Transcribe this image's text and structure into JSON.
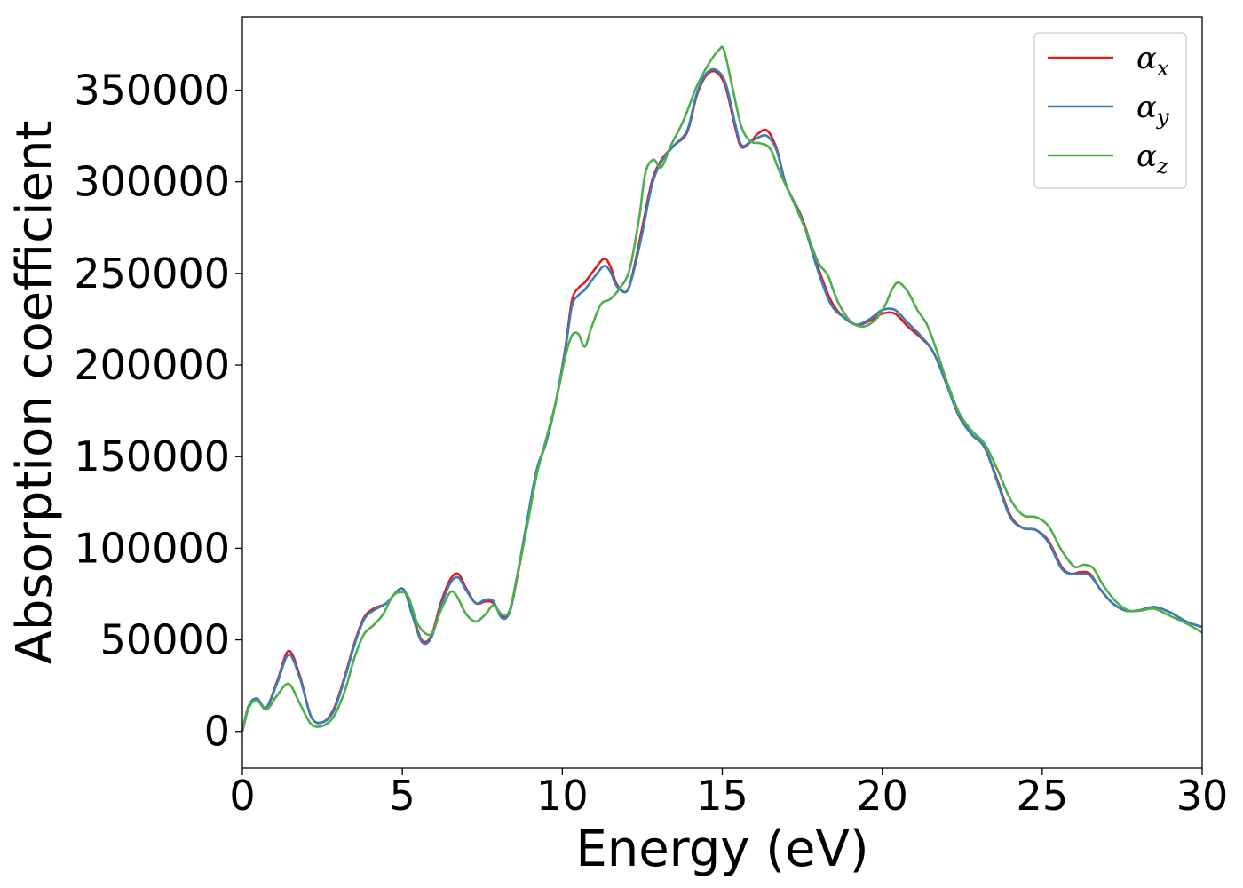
{
  "chart_data": {
    "type": "line",
    "xlabel": "Energy (eV)",
    "ylabel": "Absorption coefficient",
    "xlim": [
      0,
      30
    ],
    "ylim": [
      -20000,
      390000
    ],
    "x_ticks": [
      0,
      5,
      10,
      15,
      20,
      25,
      30
    ],
    "y_ticks": [
      0,
      50000,
      100000,
      150000,
      200000,
      250000,
      300000,
      350000
    ],
    "grid": false,
    "legend_position": "top-right",
    "series": [
      {
        "name": "α",
        "subscript": "x",
        "color": "#e41a1c",
        "x": [
          0,
          0.2,
          0.45,
          0.75,
          1.1,
          1.45,
          1.8,
          2.15,
          2.5,
          2.85,
          3.2,
          3.5,
          3.8,
          4.1,
          4.5,
          5.0,
          5.3,
          5.6,
          5.9,
          6.2,
          6.5,
          6.75,
          7.0,
          7.3,
          7.6,
          7.85,
          8.1,
          8.35,
          8.6,
          8.9,
          9.2,
          9.5,
          9.8,
          10.1,
          10.3,
          10.5,
          10.7,
          11.0,
          11.3,
          11.5,
          11.7,
          12.0,
          12.2,
          12.5,
          12.8,
          13.1,
          13.5,
          13.9,
          14.2,
          14.5,
          14.8,
          15.1,
          15.4,
          15.6,
          15.9,
          16.1,
          16.4,
          16.7,
          17.0,
          17.5,
          18.0,
          18.4,
          18.8,
          19.2,
          19.6,
          20.0,
          20.4,
          20.8,
          21.2,
          21.6,
          22.0,
          22.4,
          22.8,
          23.2,
          23.6,
          24.0,
          24.4,
          24.8,
          25.2,
          25.6,
          25.9,
          26.2,
          26.5,
          26.8,
          27.2,
          27.6,
          28.0,
          28.5,
          29.0,
          29.5,
          30.0
        ],
        "y": [
          0,
          14000,
          18000,
          13000,
          28000,
          44000,
          30000,
          8000,
          5000,
          12000,
          30000,
          48000,
          62000,
          67000,
          70000,
          78000,
          65000,
          50000,
          52000,
          70000,
          83000,
          86000,
          78000,
          70000,
          71000,
          70000,
          63000,
          65000,
          85000,
          113000,
          142000,
          158000,
          180000,
          210000,
          235000,
          242000,
          245000,
          252000,
          258000,
          254000,
          244000,
          240000,
          250000,
          275000,
          300000,
          312000,
          320000,
          327000,
          347000,
          358000,
          360000,
          352000,
          330000,
          319000,
          322000,
          326000,
          328000,
          318000,
          298000,
          280000,
          253000,
          235000,
          226000,
          222000,
          224000,
          228000,
          228000,
          221000,
          215000,
          207000,
          190000,
          172000,
          162000,
          155000,
          137000,
          118000,
          111000,
          110000,
          104000,
          90000,
          86000,
          87000,
          86000,
          78000,
          70000,
          66000,
          66000,
          68000,
          65000,
          60000,
          57000
        ]
      },
      {
        "name": "α",
        "subscript": "y",
        "color": "#377eb8",
        "x": [
          0,
          0.2,
          0.45,
          0.75,
          1.1,
          1.45,
          1.8,
          2.15,
          2.5,
          2.85,
          3.2,
          3.5,
          3.8,
          4.1,
          4.5,
          5.0,
          5.3,
          5.6,
          5.9,
          6.2,
          6.5,
          6.75,
          7.0,
          7.3,
          7.6,
          7.85,
          8.1,
          8.35,
          8.6,
          8.9,
          9.2,
          9.5,
          9.8,
          10.1,
          10.3,
          10.5,
          10.7,
          11.0,
          11.3,
          11.5,
          11.7,
          12.0,
          12.2,
          12.5,
          12.8,
          13.1,
          13.5,
          13.9,
          14.2,
          14.5,
          14.8,
          15.1,
          15.4,
          15.6,
          15.9,
          16.1,
          16.4,
          16.7,
          17.0,
          17.5,
          18.0,
          18.4,
          18.8,
          19.2,
          19.6,
          20.0,
          20.4,
          20.8,
          21.2,
          21.6,
          22.0,
          22.4,
          22.8,
          23.2,
          23.6,
          24.0,
          24.4,
          24.8,
          25.2,
          25.6,
          25.9,
          26.2,
          26.5,
          26.8,
          27.2,
          27.6,
          28.0,
          28.5,
          29.0,
          29.5,
          30.0
        ],
        "y": [
          0,
          14000,
          18000,
          13000,
          27000,
          42000,
          29000,
          8000,
          5000,
          11000,
          29000,
          47000,
          61000,
          66000,
          70000,
          78000,
          64000,
          49000,
          51000,
          68000,
          81000,
          84000,
          77000,
          70000,
          72000,
          71000,
          62000,
          65000,
          86000,
          115000,
          143000,
          158000,
          180000,
          209000,
          232000,
          238000,
          241000,
          248000,
          254000,
          251000,
          243000,
          240000,
          249000,
          272000,
          298000,
          311000,
          320000,
          328000,
          348000,
          359000,
          361000,
          354000,
          332000,
          320000,
          322000,
          324000,
          325000,
          317000,
          298000,
          279000,
          251000,
          233000,
          226000,
          222000,
          225000,
          230000,
          230000,
          223000,
          216000,
          207000,
          190000,
          172000,
          162000,
          155000,
          136000,
          117000,
          111000,
          110000,
          103000,
          89000,
          86000,
          86000,
          85000,
          78000,
          70000,
          66000,
          66000,
          68000,
          65000,
          60000,
          57000
        ]
      },
      {
        "name": "α",
        "subscript": "z",
        "color": "#4daf4a",
        "x": [
          0,
          0.2,
          0.45,
          0.75,
          1.1,
          1.45,
          1.8,
          2.15,
          2.5,
          2.85,
          3.2,
          3.5,
          3.8,
          4.1,
          4.4,
          4.7,
          5.0,
          5.2,
          5.5,
          5.9,
          6.2,
          6.5,
          6.7,
          7.0,
          7.3,
          7.6,
          7.85,
          8.1,
          8.35,
          8.6,
          8.9,
          9.2,
          9.5,
          9.8,
          10.1,
          10.3,
          10.5,
          10.7,
          10.9,
          11.2,
          11.5,
          11.8,
          12.1,
          12.4,
          12.6,
          12.85,
          13.1,
          13.4,
          13.8,
          14.2,
          14.6,
          14.9,
          15.05,
          15.3,
          15.6,
          15.9,
          16.2,
          16.5,
          16.8,
          17.2,
          17.6,
          18.0,
          18.3,
          18.6,
          19.0,
          19.4,
          19.8,
          20.1,
          20.3,
          20.5,
          20.8,
          21.1,
          21.4,
          21.7,
          22.0,
          22.4,
          22.8,
          23.2,
          23.6,
          24.0,
          24.4,
          24.8,
          25.2,
          25.6,
          26.0,
          26.3,
          26.6,
          26.9,
          27.3,
          27.7,
          28.1,
          28.5,
          29.0,
          29.5,
          30.0
        ],
        "y": [
          0,
          13000,
          17000,
          12000,
          20000,
          26000,
          15000,
          4000,
          3000,
          8000,
          22000,
          40000,
          53000,
          58000,
          64000,
          74000,
          76000,
          73000,
          58000,
          53000,
          66000,
          76000,
          74000,
          64000,
          60000,
          64000,
          69000,
          64000,
          66000,
          86000,
          112000,
          140000,
          160000,
          180000,
          205000,
          216000,
          217000,
          210000,
          220000,
          233000,
          236000,
          242000,
          252000,
          280000,
          305000,
          312000,
          308000,
          320000,
          334000,
          352000,
          365000,
          372000,
          372000,
          353000,
          330000,
          322000,
          321000,
          318000,
          305000,
          290000,
          274000,
          256000,
          249000,
          235000,
          224000,
          221000,
          225000,
          233000,
          241000,
          245000,
          240000,
          230000,
          222000,
          208000,
          192000,
          174000,
          164000,
          157000,
          143000,
          127000,
          118000,
          117000,
          112000,
          99000,
          90000,
          91000,
          89000,
          80000,
          71000,
          66000,
          66000,
          67000,
          63000,
          59000,
          54000
        ]
      }
    ]
  }
}
